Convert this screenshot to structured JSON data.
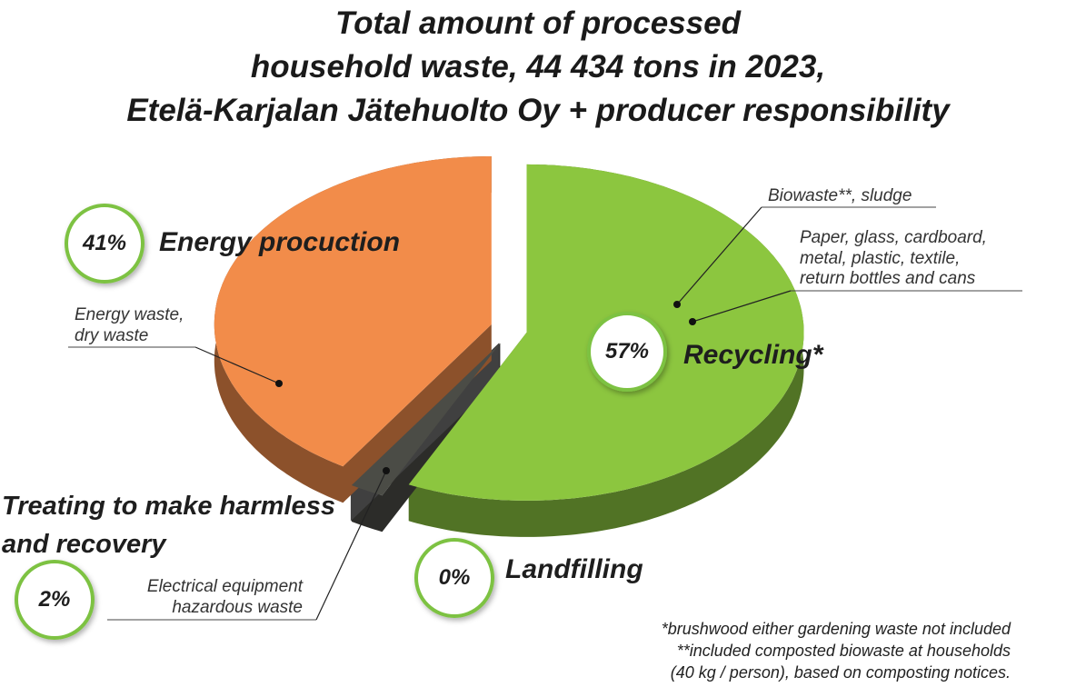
{
  "chart_data": {
    "type": "pie",
    "title": [
      "Total amount of processed",
      "household waste, 44 434 tons in 2023,",
      "Etelä-Karjalan Jätehuolto Oy + producer responsibility"
    ],
    "categories": [
      "Recycling*",
      "Treating to make harmless and recovery",
      "Landfilling",
      "Energy procuction"
    ],
    "values": [
      57,
      2,
      0,
      41
    ],
    "value_labels": [
      "57%",
      "2%",
      "0%",
      "41%"
    ],
    "colors": [
      "#8cc63f",
      "#4b4c46",
      "#6e6e6e",
      "#f28c4a"
    ],
    "annotations": [
      [
        "Biowaste**, sludge"
      ],
      [
        "Paper, glass, cardboard,",
        "metal, plastic, textile,",
        "return bottles and cans"
      ],
      [
        "Electrical equipment",
        "hazardous waste"
      ],
      [
        "Energy waste,",
        "dry waste"
      ]
    ],
    "notes": [
      "*brushwood either gardening waste not included",
      "**included composted biowaste at households",
      "(40 kg / person), based on composting notices."
    ]
  }
}
